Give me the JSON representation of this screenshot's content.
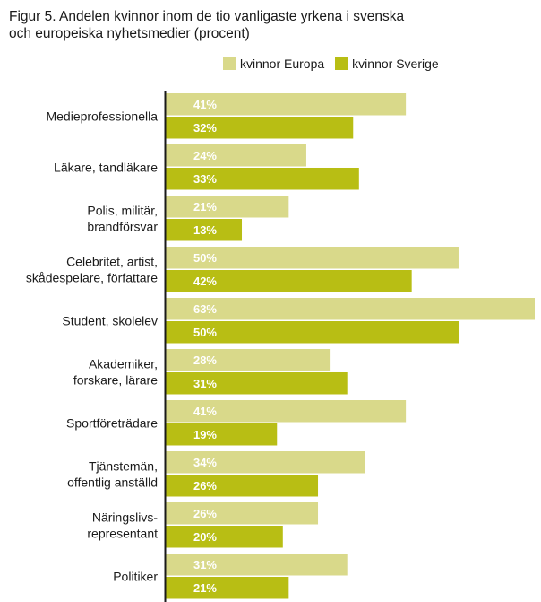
{
  "title": {
    "line1": "Figur 5. Andelen kvinnor inom de tio vanligaste yrkena i svenska",
    "line2": "och europeiska nyhetsmedier (procent)"
  },
  "colors": {
    "europa": "#d9d98a",
    "sverige": "#b8be14",
    "axis": "#1a1a1a"
  },
  "chart_data": {
    "type": "bar",
    "orientation": "horizontal",
    "title": "Figur 5. Andelen kvinnor inom de tio vanligaste yrkena i svenska och europeiska nyhetsmedier (procent)",
    "xlabel": "",
    "ylabel": "",
    "xlim": [
      0,
      63
    ],
    "legend_position": "top-right",
    "categories": [
      [
        "Medieprofessionella"
      ],
      [
        "Läkare, tandläkare"
      ],
      [
        "Polis, militär,",
        "brandförsvar"
      ],
      [
        "Celebritet, artist,",
        "skådespelare, författare"
      ],
      [
        "Student, skolelev"
      ],
      [
        "Akademiker,",
        "forskare, lärare"
      ],
      [
        "Sportföreträdare"
      ],
      [
        "Tjänstemän,",
        "offentlig anställd"
      ],
      [
        "Näringslivs-",
        "representant"
      ],
      [
        "Politiker"
      ]
    ],
    "series": [
      {
        "name": "kvinnor Europa",
        "values": [
          41,
          24,
          21,
          50,
          63,
          28,
          41,
          34,
          26,
          31
        ]
      },
      {
        "name": "kvinnor Sverige",
        "values": [
          32,
          33,
          13,
          42,
          50,
          31,
          19,
          26,
          20,
          21
        ]
      }
    ],
    "value_suffix": "%"
  }
}
